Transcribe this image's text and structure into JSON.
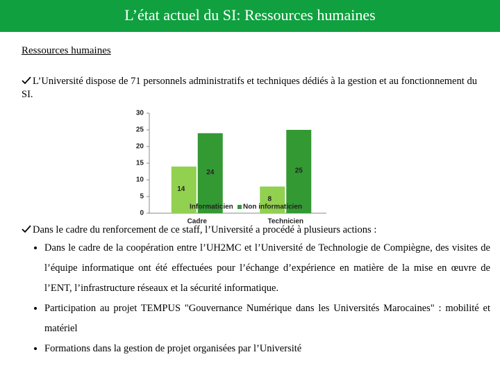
{
  "title": "L’état actuel du SI: Ressources humaines",
  "section": "Ressources humaines",
  "paragraphs": [
    "L’Université dispose de 71 personnels administratifs et techniques dédiés à la gestion et au fonctionnement du SI.",
    "Dans le cadre du renforcement de ce staff, l’Université a procédé à plusieurs actions :"
  ],
  "bullets": [
    "Dans le cadre de la coopération entre l’UH2MC et l’Université de Technologie de Compiègne, des visites de l’équipe informatique ont été effectuées pour l’échange d’expérience en matière de la mise en œuvre de l’ENT, l’infrastructure réseaux et la sécurité informatique.",
    "Participation au projet TEMPUS \"Gouvernance Numérique dans les Universités Marocaines\" : mobilité et matériel",
    "Formations dans la gestion de projet organisées par l’Université"
  ],
  "chart_data": {
    "type": "bar",
    "categories": [
      "Cadre",
      "Technicien"
    ],
    "series": [
      {
        "name": "Informaticien",
        "color": "#92d050",
        "values": [
          14,
          8
        ]
      },
      {
        "name": "Non informaticien",
        "color": "#339933",
        "values": [
          24,
          25
        ]
      }
    ],
    "ylim": [
      0,
      30
    ],
    "yticks": [
      0,
      5,
      10,
      15,
      20,
      25,
      30
    ],
    "legend": "bottom",
    "data_labels": true
  }
}
